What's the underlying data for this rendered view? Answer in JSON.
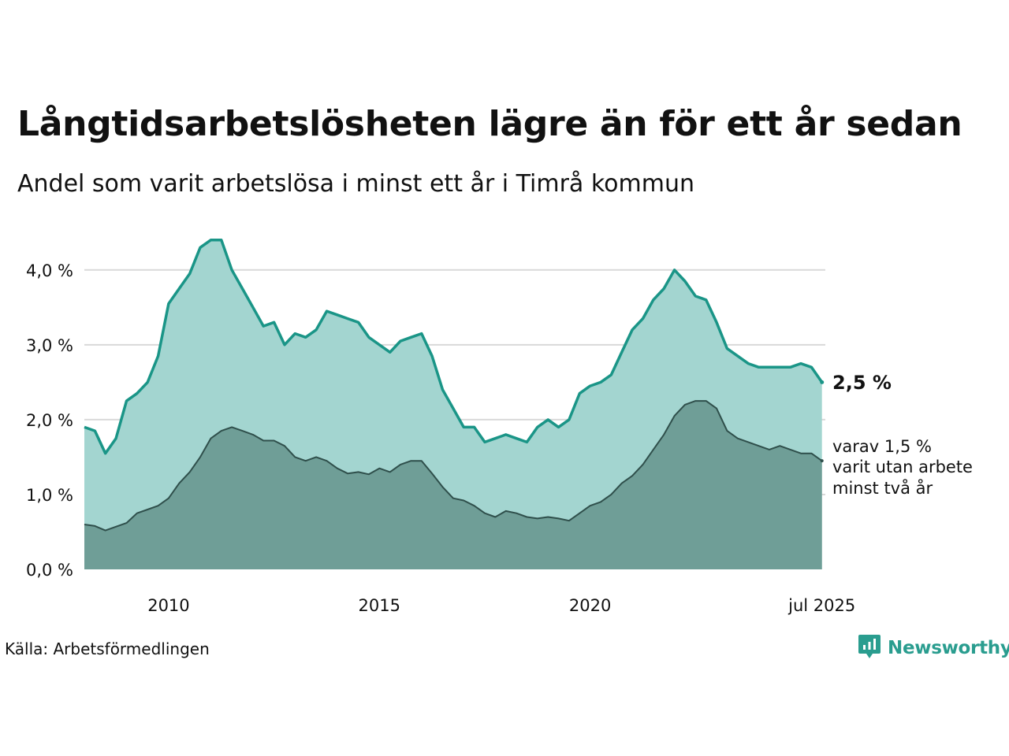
{
  "title": "Långtidsarbetslösheten lägre än för ett år sedan",
  "subtitle": "Andel som varit arbetslösa i minst ett år i Timrå kommun",
  "source": "Källa: Arbetsförmedlingen",
  "brand": "Newsworthy",
  "colors": {
    "line_main": "#1a9587",
    "area_main": "#a3d5d0",
    "line_sub": "#2f4f4b",
    "area_sub": "#6f9e97",
    "grid": "#d9d9d9",
    "brand": "#2a9d8f"
  },
  "icons": {
    "logo": "chart-speech-bubble-icon"
  },
  "chart_data": {
    "type": "area",
    "ylim": [
      0,
      4.45
    ],
    "xlim": [
      2008.0,
      2025.58
    ],
    "y_ticks": [
      0,
      1,
      2,
      3,
      4
    ],
    "y_tick_labels": [
      "0,0 %",
      "1,0 %",
      "2,0 %",
      "3,0 %",
      "4,0 %"
    ],
    "x_ticks": [
      2010,
      2015,
      2020,
      2025.5
    ],
    "x_tick_labels": [
      "2010",
      "2015",
      "2020",
      "jul 2025"
    ],
    "grid": true,
    "end_label_main": "2,5 %",
    "end_label_sub": [
      "varav 1,5 %",
      "varit utan arbete",
      "minst två år"
    ],
    "series": [
      {
        "x": [
          2008.0,
          2008.25,
          2008.5,
          2008.75,
          2009.0,
          2009.25,
          2009.5,
          2009.75,
          2010.0,
          2010.25,
          2010.5,
          2010.75,
          2011.0,
          2011.25,
          2011.5,
          2011.75,
          2012.0,
          2012.25,
          2012.5,
          2012.75,
          2013.0,
          2013.25,
          2013.5,
          2013.75,
          2014.0,
          2014.25,
          2014.5,
          2014.75,
          2015.0,
          2015.25,
          2015.5,
          2015.75,
          2016.0,
          2016.25,
          2016.5,
          2016.75,
          2017.0,
          2017.25,
          2017.5,
          2017.75,
          2018.0,
          2018.25,
          2018.5,
          2018.75,
          2019.0,
          2019.25,
          2019.5,
          2019.75,
          2020.0,
          2020.25,
          2020.5,
          2020.75,
          2021.0,
          2021.25,
          2021.5,
          2021.75,
          2022.0,
          2022.25,
          2022.5,
          2022.75,
          2023.0,
          2023.25,
          2023.5,
          2023.75,
          2024.0,
          2024.25,
          2024.5,
          2024.75,
          2025.0,
          2025.25,
          2025.5
        ],
        "values": [
          1.9,
          1.85,
          1.55,
          1.75,
          2.25,
          2.35,
          2.5,
          2.85,
          3.55,
          3.75,
          3.95,
          4.3,
          4.4,
          4.4,
          4.0,
          3.75,
          3.5,
          3.25,
          3.3,
          3.0,
          3.15,
          3.1,
          3.2,
          3.45,
          3.4,
          3.35,
          3.3,
          3.1,
          3.0,
          2.9,
          3.05,
          3.1,
          3.15,
          2.85,
          2.4,
          2.15,
          1.9,
          1.9,
          1.7,
          1.75,
          1.8,
          1.75,
          1.7,
          1.9,
          2.0,
          1.9,
          2.0,
          2.35,
          2.45,
          2.5,
          2.6,
          2.9,
          3.2,
          3.35,
          3.6,
          3.75,
          4.0,
          3.85,
          3.65,
          3.6,
          3.3,
          2.95,
          2.85,
          2.75,
          2.7,
          2.7,
          2.7,
          2.7,
          2.75,
          2.7,
          2.5
        ]
      },
      {
        "x": [
          2008.0,
          2008.25,
          2008.5,
          2008.75,
          2009.0,
          2009.25,
          2009.5,
          2009.75,
          2010.0,
          2010.25,
          2010.5,
          2010.75,
          2011.0,
          2011.25,
          2011.5,
          2011.75,
          2012.0,
          2012.25,
          2012.5,
          2012.75,
          2013.0,
          2013.25,
          2013.5,
          2013.75,
          2014.0,
          2014.25,
          2014.5,
          2014.75,
          2015.0,
          2015.25,
          2015.5,
          2015.75,
          2016.0,
          2016.25,
          2016.5,
          2016.75,
          2017.0,
          2017.25,
          2017.5,
          2017.75,
          2018.0,
          2018.25,
          2018.5,
          2018.75,
          2019.0,
          2019.25,
          2019.5,
          2019.75,
          2020.0,
          2020.25,
          2020.5,
          2020.75,
          2021.0,
          2021.25,
          2021.5,
          2021.75,
          2022.0,
          2022.25,
          2022.5,
          2022.75,
          2023.0,
          2023.25,
          2023.5,
          2023.75,
          2024.0,
          2024.25,
          2024.5,
          2024.75,
          2025.0,
          2025.25,
          2025.5
        ],
        "values": [
          0.6,
          0.58,
          0.52,
          0.57,
          0.62,
          0.75,
          0.8,
          0.85,
          0.95,
          1.15,
          1.3,
          1.5,
          1.75,
          1.85,
          1.9,
          1.85,
          1.8,
          1.72,
          1.72,
          1.65,
          1.5,
          1.45,
          1.5,
          1.45,
          1.35,
          1.28,
          1.3,
          1.27,
          1.35,
          1.3,
          1.4,
          1.45,
          1.45,
          1.28,
          1.1,
          0.95,
          0.92,
          0.85,
          0.75,
          0.7,
          0.78,
          0.75,
          0.7,
          0.68,
          0.7,
          0.68,
          0.65,
          0.75,
          0.85,
          0.9,
          1.0,
          1.15,
          1.25,
          1.4,
          1.6,
          1.8,
          2.05,
          2.2,
          2.25,
          2.25,
          2.15,
          1.85,
          1.75,
          1.7,
          1.65,
          1.6,
          1.65,
          1.6,
          1.55,
          1.55,
          1.45
        ]
      }
    ]
  }
}
